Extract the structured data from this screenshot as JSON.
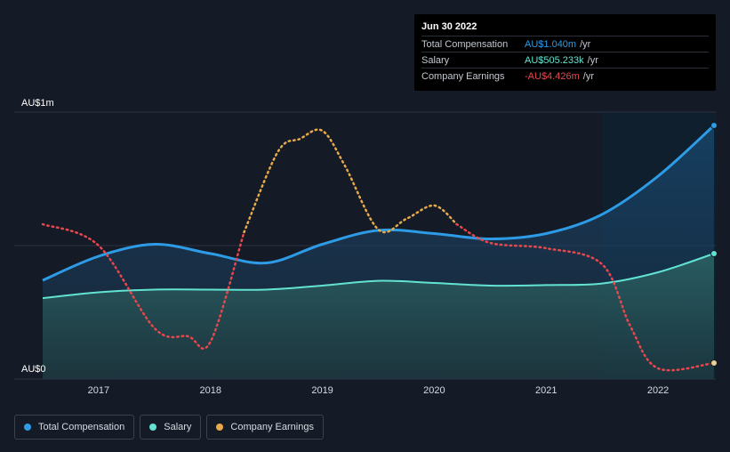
{
  "tooltip": {
    "date": "Jun 30 2022",
    "rows": [
      {
        "label": "Total Compensation",
        "value": "AU$1.040m",
        "unit": "/yr",
        "color": "#2e9be6"
      },
      {
        "label": "Salary",
        "value": "AU$505.233k",
        "unit": "/yr",
        "color": "#62e3d2"
      },
      {
        "label": "Company Earnings",
        "value": "-AU$4.426m",
        "unit": "/yr",
        "color": "#e8474d"
      }
    ]
  },
  "legend": [
    {
      "label": "Total Compensation",
      "color": "#2e9be6"
    },
    {
      "label": "Salary",
      "color": "#62e3d2"
    },
    {
      "label": "Company Earnings",
      "color": "#e8a94a"
    }
  ],
  "chart_data": {
    "type": "line",
    "title": "",
    "xlabel": "",
    "ylabel": "",
    "y_top_label": "AU$1m",
    "y_bottom_label": "AU$0",
    "ylim": [
      0,
      1
    ],
    "xlim": [
      2016.5,
      2022.5
    ],
    "x_ticks": [
      2017,
      2018,
      2019,
      2020,
      2021,
      2022
    ],
    "x_tick_labels": [
      "2017",
      "2018",
      "2019",
      "2020",
      "2021",
      "2022"
    ],
    "forecast_region_start": 2021.5,
    "series": [
      {
        "name": "Total Compensation",
        "color": "#2e9be6",
        "style": "solid",
        "area": true,
        "x": [
          2016.5,
          2017.0,
          2017.5,
          2018.0,
          2018.5,
          2019.0,
          2019.5,
          2020.0,
          2020.5,
          2021.0,
          2021.5,
          2022.0,
          2022.5
        ],
        "y": [
          0.37,
          0.46,
          0.505,
          0.47,
          0.435,
          0.505,
          0.557,
          0.545,
          0.525,
          0.545,
          0.617,
          0.76,
          0.95
        ]
      },
      {
        "name": "Salary",
        "color": "#62e3d2",
        "style": "solid",
        "area": true,
        "x": [
          2016.5,
          2017.0,
          2017.5,
          2018.0,
          2018.5,
          2019.0,
          2019.5,
          2020.0,
          2020.5,
          2021.0,
          2021.5,
          2022.0,
          2022.5
        ],
        "y": [
          0.303,
          0.325,
          0.335,
          0.335,
          0.335,
          0.35,
          0.368,
          0.36,
          0.35,
          0.352,
          0.358,
          0.4,
          0.47
        ]
      },
      {
        "name": "Company Earnings",
        "color_positive": "#e8a94a",
        "color_negative": "#e8474d",
        "style": "dotted",
        "area": false,
        "x": [
          2016.5,
          2017.0,
          2017.5,
          2017.8,
          2018.0,
          2018.3,
          2018.6,
          2018.8,
          2019.0,
          2019.2,
          2019.5,
          2019.75,
          2020.0,
          2020.2,
          2020.5,
          2021.0,
          2021.5,
          2021.75,
          2022.0,
          2022.5
        ],
        "y": [
          0.58,
          0.5,
          0.19,
          0.16,
          0.14,
          0.55,
          0.85,
          0.9,
          0.93,
          0.8,
          0.56,
          0.6,
          0.65,
          0.58,
          0.51,
          0.49,
          0.43,
          0.2,
          0.04,
          0.06
        ],
        "negative_from_x": 2020.4
      }
    ]
  }
}
